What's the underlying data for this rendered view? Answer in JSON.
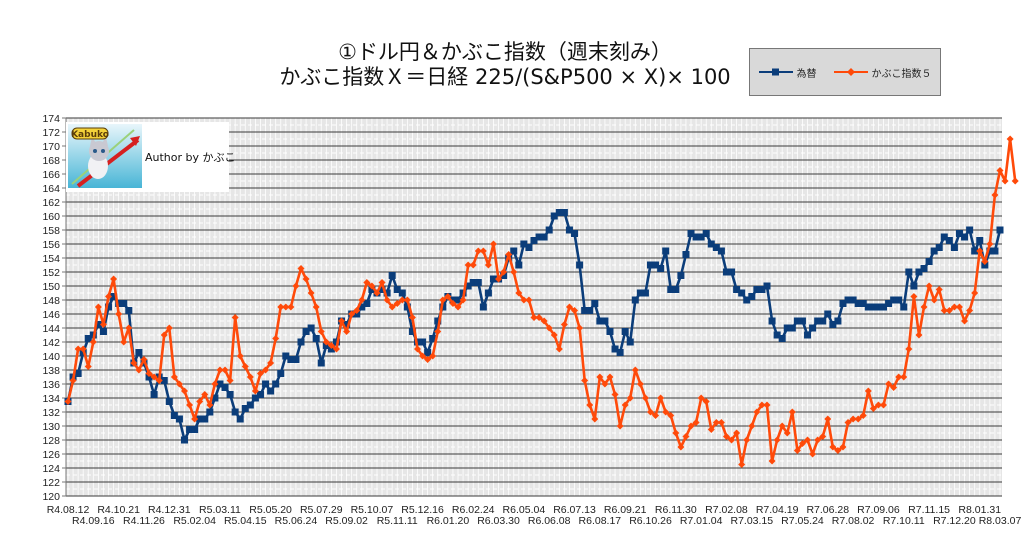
{
  "title": {
    "line1": "①ドル円＆かぶこ指数（週末刻み）",
    "line2": "かぶこ指数Ｘ＝日経 225/(S&P500 × X)× 100"
  },
  "legend": {
    "items": [
      {
        "label": "為替",
        "color": "#0b3d7a",
        "marker": "square"
      },
      {
        "label": "かぶこ指数５",
        "color": "#ff4a0a",
        "marker": "diamond"
      }
    ]
  },
  "logo": {
    "text": "Kabuko"
  },
  "author": "Author by かぶこ",
  "colors": {
    "plot_bg": "#e6e6e6",
    "grid_major": "#333333",
    "grid_minor": "#ffffff",
    "fx": "#0b3d7a",
    "kabuko": "#ff4a0a"
  },
  "chart_data": {
    "type": "line",
    "title": "①ドル円＆かぶこ指数（週末刻み）",
    "ylim": [
      120,
      174
    ],
    "yticks": [
      120,
      122,
      124,
      126,
      128,
      130,
      132,
      134,
      136,
      138,
      140,
      142,
      144,
      146,
      148,
      150,
      152,
      154,
      156,
      158,
      160,
      162,
      164,
      166,
      168,
      170,
      172,
      174
    ],
    "grid": true,
    "legend_position": "top-right",
    "xtick_labels_row1": [
      "R4.08.12",
      "R4.10.21",
      "R4.12.31",
      "R5.03.11",
      "R5.05.20",
      "R5.07.29",
      "R5.10.07",
      "R5.12.16",
      "R6.02.24",
      "R6.05.04",
      "R6.07.13",
      "R6.09.21",
      "R6.11.30",
      "R7.02.08",
      "R7.04.19",
      "R7.06.28",
      "R7.09.06",
      "R7.11.15",
      "R8.01.31"
    ],
    "xtick_labels_row2": [
      "R4.09.16",
      "R4.11.26",
      "R5.02.04",
      "R5.04.15",
      "R5.06.24",
      "R5.09.02",
      "R5.11.11",
      "R6.01.20",
      "R6.03.30",
      "R6.06.08",
      "R6.08.17",
      "R6.10.26",
      "R7.01.04",
      "R7.03.15",
      "R7.05.24",
      "R7.08.02",
      "R7.10.11",
      "R7.12.20",
      "R8.03.07"
    ],
    "series": [
      {
        "name": "為替",
        "values": [
          133.5,
          137,
          137.5,
          140.5,
          142.5,
          143,
          144.5,
          143.5,
          147,
          148.5,
          147.5,
          147.5,
          146.5,
          139,
          140.5,
          139,
          137,
          134.5,
          137,
          136.5,
          133.5,
          131.5,
          131,
          128,
          129.5,
          129.5,
          131,
          131,
          132,
          134,
          136,
          135.5,
          134.5,
          132,
          131,
          132.5,
          133,
          134,
          134.5,
          136,
          135,
          136,
          137.5,
          140,
          139.5,
          139.5,
          142,
          143.5,
          144,
          142.5,
          139,
          141.5,
          141,
          142,
          145,
          144.5,
          146,
          146,
          147,
          147.5,
          149.5,
          149,
          149.5,
          149,
          151.5,
          149.5,
          149,
          147,
          143.5,
          142,
          142,
          140.5,
          142.5,
          145,
          147,
          148.5,
          148,
          148,
          149,
          150,
          150.5,
          150.5,
          147,
          149,
          151,
          151,
          151.5,
          154,
          155,
          153,
          156,
          155.5,
          156.5,
          157,
          157,
          158,
          160,
          160.5,
          160.5,
          158,
          157.5,
          153,
          146.5,
          146.5,
          147.5,
          145,
          145,
          143.5,
          141,
          140.5,
          143.5,
          142,
          148,
          149,
          149,
          153,
          153,
          152.5,
          155,
          149.5,
          149.5,
          151.5,
          154.5,
          157.5,
          157,
          157,
          157.5,
          156,
          155.5,
          155,
          152,
          152,
          149.5,
          149,
          148,
          148.5,
          149.5,
          149.5,
          150,
          145,
          143,
          142.5,
          144,
          144,
          145,
          145,
          143,
          144,
          145,
          145,
          146,
          144.5,
          145,
          147.5,
          148,
          148,
          147.5,
          147.5,
          147,
          147,
          147,
          147,
          147.5,
          148,
          148,
          147,
          152,
          150,
          152,
          152.5,
          153.5,
          155,
          155.5,
          157,
          156.5,
          155.5,
          157.5,
          157,
          158,
          155,
          156.5,
          153,
          155,
          155,
          158
        ]
      },
      {
        "name": "かぶこ指数５",
        "values": [
          133.5,
          136.5,
          141,
          141,
          138.5,
          142,
          147,
          144.5,
          148.5,
          151,
          146,
          142,
          144,
          139,
          138,
          139.5,
          137.5,
          137,
          136.5,
          143,
          144,
          137,
          136,
          135,
          133,
          131,
          133.5,
          134.5,
          133,
          136,
          138,
          138,
          136.5,
          145.5,
          140,
          138.5,
          137,
          135,
          137.5,
          138,
          139,
          142.5,
          147,
          147,
          147,
          150,
          152.5,
          151,
          149,
          147,
          143.5,
          142,
          141.5,
          141,
          145,
          143.5,
          146,
          146.5,
          148,
          150.5,
          150,
          149,
          150.5,
          148,
          147,
          147.5,
          148,
          148,
          145.5,
          141,
          140,
          139.5,
          140,
          143.5,
          148,
          148.5,
          147.5,
          147,
          148,
          153,
          153,
          155,
          155,
          153,
          156,
          151,
          152,
          154.5,
          152,
          149,
          148,
          148,
          145.5,
          145.5,
          145,
          144,
          143,
          141,
          144.5,
          147,
          146.5,
          144,
          136.5,
          133,
          131,
          137,
          136,
          137,
          134.5,
          130,
          133,
          134,
          138,
          136,
          134,
          132,
          131.5,
          134,
          132,
          131.5,
          129,
          127,
          128.5,
          130,
          130.5,
          134,
          133.5,
          129.5,
          130.5,
          130.5,
          128.5,
          128,
          129,
          124.5,
          128,
          130,
          132,
          133,
          133,
          125,
          128,
          130,
          129,
          132,
          126.5,
          127.5,
          128,
          126,
          128,
          128.5,
          131,
          127,
          126.5,
          127,
          130.5,
          131,
          131,
          131.5,
          135,
          132.5,
          133,
          133,
          136,
          135.5,
          137,
          137,
          141,
          148.5,
          143,
          147,
          150,
          148,
          149.5,
          146.5,
          146.5,
          147,
          147,
          145,
          146.5,
          149,
          155,
          153.5,
          156,
          163,
          166.5,
          165,
          171,
          165
        ]
      }
    ]
  }
}
